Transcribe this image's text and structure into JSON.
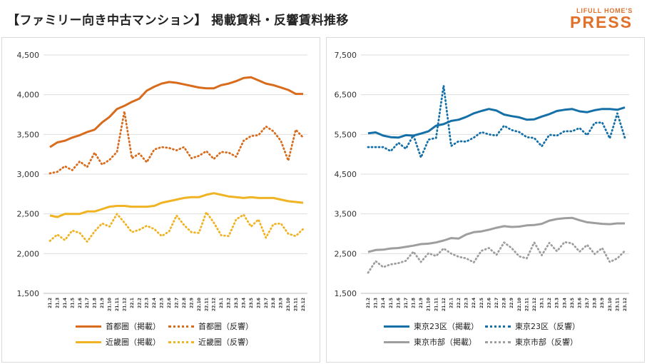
{
  "title": "【ファミリー向き中古マンション】 掲載賃料・反響賃料推移",
  "logo": {
    "small": "LIFULL HOME'S",
    "big": "PRESS"
  },
  "colors": {
    "orange": "#d96b1c",
    "yellow": "#f0b323",
    "blue": "#1670a8",
    "gray": "#9e9e9e"
  },
  "months": [
    "21.2",
    "21.3",
    "21.4",
    "21.5",
    "21.6",
    "21.7",
    "21.8",
    "21.9",
    "21.10",
    "21.11",
    "21.12",
    "22.1",
    "22.2",
    "22.3",
    "22.4",
    "22.5",
    "22.6",
    "22.7",
    "22.8",
    "22.9",
    "22.10",
    "22.11",
    "22.12",
    "23.1",
    "23.2",
    "23.3",
    "23.4",
    "23.5",
    "23.6",
    "23.7",
    "23.8",
    "23.9",
    "23.10",
    "23.11",
    "23.12"
  ],
  "chart_data": [
    {
      "type": "line",
      "ylim": [
        1500,
        4500
      ],
      "yticks": [
        "1,500",
        "2,000",
        "2,500",
        "3,000",
        "3,500",
        "4,000",
        "4,500"
      ],
      "series": [
        {
          "name": "首都圏（掲載）",
          "style": "solid",
          "color": "#d96b1c",
          "values": [
            3340,
            3400,
            3420,
            3460,
            3490,
            3530,
            3560,
            3650,
            3720,
            3820,
            3860,
            3910,
            3950,
            4050,
            4100,
            4140,
            4160,
            4150,
            4130,
            4110,
            4090,
            4080,
            4080,
            4120,
            4140,
            4170,
            4210,
            4220,
            4180,
            4140,
            4120,
            4090,
            4060,
            4010,
            4010
          ]
        },
        {
          "name": "首都圏（反響）",
          "style": "dotted",
          "color": "#d96b1c",
          "values": [
            3010,
            3030,
            3100,
            3050,
            3160,
            3090,
            3270,
            3120,
            3180,
            3280,
            3790,
            3200,
            3260,
            3150,
            3310,
            3340,
            3330,
            3300,
            3340,
            3200,
            3230,
            3290,
            3190,
            3280,
            3270,
            3220,
            3420,
            3480,
            3490,
            3600,
            3540,
            3420,
            3170,
            3560,
            3460
          ]
        },
        {
          "name": "近畿圏（掲載）",
          "style": "solid",
          "color": "#f0b323",
          "values": [
            2480,
            2460,
            2500,
            2500,
            2500,
            2530,
            2530,
            2560,
            2590,
            2600,
            2600,
            2590,
            2590,
            2590,
            2600,
            2640,
            2660,
            2680,
            2700,
            2710,
            2710,
            2740,
            2760,
            2740,
            2720,
            2710,
            2700,
            2710,
            2700,
            2700,
            2700,
            2680,
            2660,
            2650,
            2640
          ]
        },
        {
          "name": "近畿圏（反響）",
          "style": "dotted",
          "color": "#f0b323",
          "values": [
            2160,
            2240,
            2170,
            2290,
            2260,
            2150,
            2280,
            2380,
            2340,
            2500,
            2390,
            2270,
            2300,
            2350,
            2310,
            2220,
            2280,
            2480,
            2360,
            2270,
            2260,
            2520,
            2390,
            2230,
            2220,
            2430,
            2490,
            2340,
            2430,
            2200,
            2370,
            2380,
            2250,
            2220,
            2310
          ]
        }
      ]
    },
    {
      "type": "line",
      "ylim": [
        1500,
        7500
      ],
      "yticks": [
        "1,500",
        "2,500",
        "3,500",
        "4,500",
        "5,500",
        "6,500",
        "7,500"
      ],
      "series": [
        {
          "name": "東京23区（掲載）",
          "style": "solid",
          "color": "#1670a8",
          "values": [
            5530,
            5550,
            5470,
            5430,
            5420,
            5480,
            5470,
            5520,
            5580,
            5720,
            5760,
            5840,
            5870,
            5940,
            6030,
            6090,
            6140,
            6100,
            6000,
            5960,
            5930,
            5870,
            5880,
            5950,
            6010,
            6090,
            6120,
            6140,
            6080,
            6060,
            6110,
            6140,
            6140,
            6120,
            6180
          ]
        },
        {
          "name": "東京23区（反響）",
          "style": "dotted",
          "color": "#1670a8",
          "values": [
            5180,
            5180,
            5180,
            5080,
            5290,
            5140,
            5480,
            4920,
            5370,
            5410,
            6730,
            5210,
            5330,
            5320,
            5420,
            5560,
            5500,
            5470,
            5720,
            5610,
            5560,
            5430,
            5410,
            5200,
            5490,
            5470,
            5580,
            5580,
            5660,
            5480,
            5790,
            5800,
            5400,
            6030,
            5410
          ]
        },
        {
          "name": "東京市部（掲載）",
          "style": "solid",
          "color": "#9e9e9e",
          "values": [
            2540,
            2590,
            2600,
            2630,
            2640,
            2670,
            2700,
            2740,
            2750,
            2780,
            2830,
            2890,
            2880,
            2980,
            3040,
            3060,
            3100,
            3150,
            3190,
            3170,
            3180,
            3210,
            3220,
            3250,
            3330,
            3370,
            3390,
            3400,
            3340,
            3290,
            3270,
            3250,
            3240,
            3260,
            3260
          ]
        },
        {
          "name": "東京市部（反響）",
          "style": "dotted",
          "color": "#9e9e9e",
          "values": [
            2020,
            2310,
            2160,
            2230,
            2260,
            2320,
            2550,
            2290,
            2510,
            2440,
            2630,
            2500,
            2420,
            2380,
            2280,
            2570,
            2640,
            2470,
            2780,
            2640,
            2430,
            2380,
            2780,
            2460,
            2770,
            2560,
            2790,
            2760,
            2550,
            2720,
            2490,
            2640,
            2290,
            2380,
            2570
          ]
        }
      ]
    }
  ]
}
